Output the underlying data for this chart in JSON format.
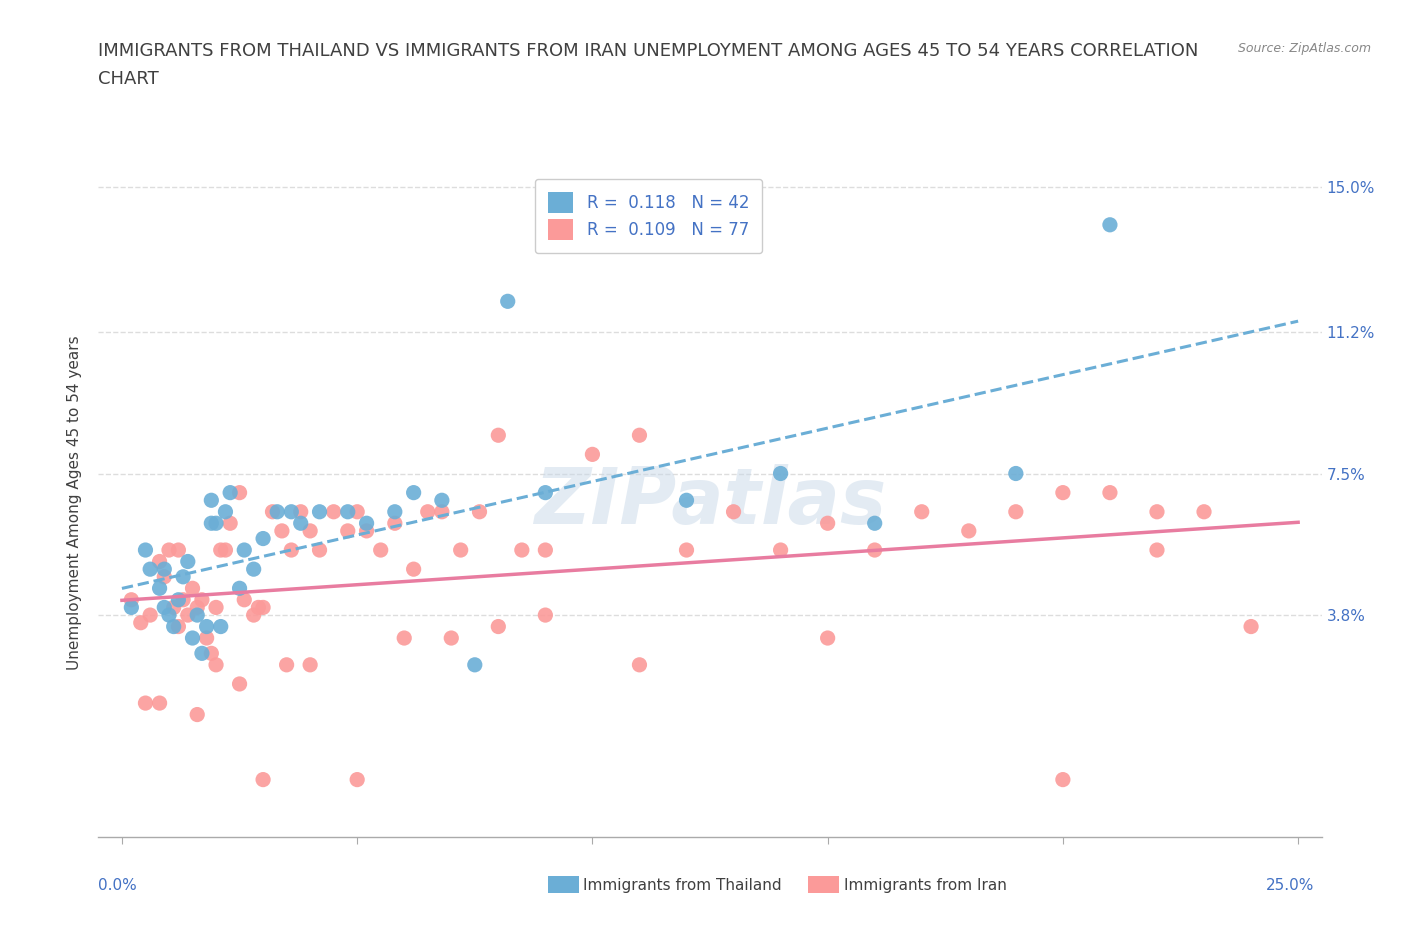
{
  "title_line1": "IMMIGRANTS FROM THAILAND VS IMMIGRANTS FROM IRAN UNEMPLOYMENT AMONG AGES 45 TO 54 YEARS CORRELATION",
  "title_line2": "CHART",
  "source_text": "Source: ZipAtlas.com",
  "ylabel": "Unemployment Among Ages 45 to 54 years",
  "xlim": [
    -0.005,
    0.255
  ],
  "ylim": [
    -0.02,
    0.155
  ],
  "xtick_pos": [
    0.0,
    0.05,
    0.1,
    0.15,
    0.2,
    0.25
  ],
  "xtick_labels": [
    "0.0%",
    "",
    "",
    "",
    "",
    "25.0%"
  ],
  "ytick_positions": [
    0.038,
    0.075,
    0.112,
    0.15
  ],
  "ytick_labels": [
    "3.8%",
    "7.5%",
    "11.2%",
    "15.0%"
  ],
  "thailand_color": "#6baed6",
  "iran_color": "#fb9a99",
  "thailand_trendline_color": "#6baed6",
  "iran_trendline_color": "#e31a1c",
  "thailand_R": 0.118,
  "thailand_N": 42,
  "iran_R": 0.109,
  "iran_N": 77,
  "thailand_x": [
    0.002,
    0.005,
    0.006,
    0.008,
    0.009,
    0.009,
    0.01,
    0.011,
    0.012,
    0.013,
    0.014,
    0.015,
    0.016,
    0.017,
    0.018,
    0.019,
    0.019,
    0.02,
    0.021,
    0.022,
    0.023,
    0.025,
    0.026,
    0.028,
    0.03,
    0.033,
    0.036,
    0.038,
    0.042,
    0.048,
    0.052,
    0.058,
    0.062,
    0.068,
    0.075,
    0.082,
    0.09,
    0.12,
    0.14,
    0.16,
    0.19,
    0.21
  ],
  "thailand_y": [
    0.04,
    0.055,
    0.05,
    0.045,
    0.05,
    0.04,
    0.038,
    0.035,
    0.042,
    0.048,
    0.052,
    0.032,
    0.038,
    0.028,
    0.035,
    0.062,
    0.068,
    0.062,
    0.035,
    0.065,
    0.07,
    0.045,
    0.055,
    0.05,
    0.058,
    0.065,
    0.065,
    0.062,
    0.065,
    0.065,
    0.062,
    0.065,
    0.07,
    0.068,
    0.025,
    0.12,
    0.07,
    0.068,
    0.075,
    0.062,
    0.075,
    0.14
  ],
  "iran_x": [
    0.002,
    0.004,
    0.006,
    0.008,
    0.009,
    0.01,
    0.011,
    0.012,
    0.013,
    0.014,
    0.015,
    0.016,
    0.017,
    0.018,
    0.019,
    0.02,
    0.021,
    0.022,
    0.023,
    0.025,
    0.026,
    0.028,
    0.029,
    0.03,
    0.032,
    0.034,
    0.036,
    0.038,
    0.04,
    0.042,
    0.045,
    0.048,
    0.05,
    0.052,
    0.055,
    0.058,
    0.062,
    0.065,
    0.068,
    0.072,
    0.076,
    0.08,
    0.085,
    0.09,
    0.1,
    0.11,
    0.12,
    0.13,
    0.14,
    0.15,
    0.16,
    0.17,
    0.18,
    0.19,
    0.2,
    0.21,
    0.22,
    0.23,
    0.005,
    0.008,
    0.012,
    0.016,
    0.02,
    0.025,
    0.03,
    0.035,
    0.04,
    0.05,
    0.06,
    0.07,
    0.08,
    0.09,
    0.11,
    0.15,
    0.2,
    0.22,
    0.24
  ],
  "iran_y": [
    0.042,
    0.036,
    0.038,
    0.052,
    0.048,
    0.055,
    0.04,
    0.035,
    0.042,
    0.038,
    0.045,
    0.04,
    0.042,
    0.032,
    0.028,
    0.04,
    0.055,
    0.055,
    0.062,
    0.07,
    0.042,
    0.038,
    0.04,
    0.04,
    0.065,
    0.06,
    0.055,
    0.065,
    0.06,
    0.055,
    0.065,
    0.06,
    0.065,
    0.06,
    0.055,
    0.062,
    0.05,
    0.065,
    0.065,
    0.055,
    0.065,
    0.085,
    0.055,
    0.055,
    0.08,
    0.085,
    0.055,
    0.065,
    0.055,
    0.062,
    0.055,
    0.065,
    0.06,
    0.065,
    0.07,
    0.07,
    0.065,
    0.065,
    0.015,
    0.015,
    0.055,
    0.012,
    0.025,
    0.02,
    -0.005,
    0.025,
    0.025,
    -0.005,
    0.032,
    0.032,
    0.035,
    0.038,
    0.025,
    0.032,
    -0.005,
    0.055,
    0.035
  ],
  "background_color": "#ffffff",
  "grid_color": "#dddddd",
  "title_fontsize": 13,
  "axis_label_fontsize": 11,
  "tick_fontsize": 11,
  "legend_fontsize": 12,
  "watermark_text": "ZIPatlas",
  "watermark_color": "#c8d8e8",
  "label_color_blue": "#4472c4",
  "label_color_dark": "#404040",
  "iran_trendline_pink": "#e87ca0"
}
